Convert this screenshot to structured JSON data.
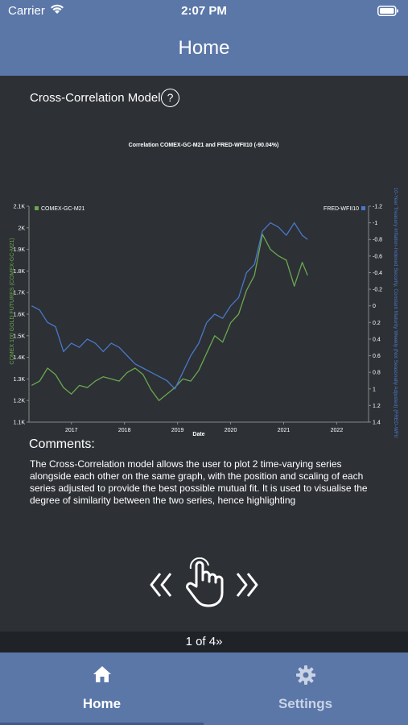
{
  "status_bar": {
    "carrier": "Carrier",
    "time": "2:07 PM"
  },
  "nav": {
    "title": "Home"
  },
  "model": {
    "title": "Cross-Correlation Model",
    "help_symbol": "?"
  },
  "chart_data": {
    "type": "line",
    "title": "Correlation COMEX-GC-M21 and FRED-WFII10 (-90.04%)",
    "xlabel": "Date",
    "x_ticks": [
      "2017",
      "2018",
      "2019",
      "2020",
      "2021",
      "2022"
    ],
    "y_left_label": "COMEX 100 GOLD FUTURES (COMEX-GC-M21)",
    "y_left_ticks": [
      "1.1K",
      "1.2K",
      "1.3K",
      "1.4K",
      "1.5K",
      "1.6K",
      "1.7K",
      "1.8K",
      "1.9K",
      "2K",
      "2.1K"
    ],
    "y_left_range": [
      1100,
      2100
    ],
    "y_right_label": "10-Year Treasury Inflation-Indexed Security, Constant Maturity Weekly (Not Seasonally Adjusted) (FRED-WFII",
    "y_right_ticks": [
      "-1.2",
      "-1",
      "-0.8",
      "-0.6",
      "-0.4",
      "-0.2",
      "0",
      "0.2",
      "0.4",
      "0.6",
      "0.8",
      "1",
      "1.2",
      "1.4"
    ],
    "y_right_range": [
      -1.2,
      1.4
    ],
    "y_right_inverted": true,
    "legend": "top",
    "series": [
      {
        "name": "COMEX-GC-M21",
        "color": "#6aa84f",
        "axis": "left",
        "x": [
          2016.25,
          2016.4,
          2016.55,
          2016.7,
          2016.85,
          2017.0,
          2017.15,
          2017.3,
          2017.45,
          2017.6,
          2017.75,
          2017.9,
          2018.05,
          2018.2,
          2018.35,
          2018.5,
          2018.65,
          2018.8,
          2018.95,
          2019.1,
          2019.25,
          2019.4,
          2019.55,
          2019.7,
          2019.85,
          2020.0,
          2020.15,
          2020.3,
          2020.45,
          2020.6,
          2020.75,
          2020.9,
          2021.05,
          2021.2,
          2021.35,
          2021.45
        ],
        "values": [
          1270,
          1290,
          1350,
          1320,
          1260,
          1230,
          1270,
          1260,
          1290,
          1310,
          1300,
          1290,
          1330,
          1350,
          1320,
          1250,
          1200,
          1230,
          1260,
          1300,
          1290,
          1340,
          1420,
          1500,
          1470,
          1560,
          1600,
          1710,
          1780,
          1970,
          1900,
          1870,
          1850,
          1730,
          1840,
          1780
        ]
      },
      {
        "name": "FRED-WFII10",
        "color": "#4a78c8",
        "axis": "right",
        "x": [
          2016.25,
          2016.4,
          2016.55,
          2016.7,
          2016.85,
          2017.0,
          2017.15,
          2017.3,
          2017.45,
          2017.6,
          2017.75,
          2017.9,
          2018.05,
          2018.2,
          2018.35,
          2018.5,
          2018.65,
          2018.8,
          2018.95,
          2019.1,
          2019.25,
          2019.4,
          2019.55,
          2019.7,
          2019.85,
          2020.0,
          2020.15,
          2020.3,
          2020.45,
          2020.6,
          2020.75,
          2020.9,
          2021.05,
          2021.2,
          2021.35,
          2021.45
        ],
        "values": [
          0.0,
          0.05,
          0.2,
          0.25,
          0.55,
          0.45,
          0.5,
          0.4,
          0.45,
          0.55,
          0.45,
          0.5,
          0.6,
          0.7,
          0.75,
          0.8,
          0.85,
          0.9,
          1.0,
          0.8,
          0.6,
          0.45,
          0.2,
          0.1,
          0.15,
          0.0,
          -0.1,
          -0.4,
          -0.5,
          -0.9,
          -1.0,
          -0.95,
          -0.85,
          -1.0,
          -0.85,
          -0.8
        ]
      }
    ]
  },
  "comments": {
    "title": "Comments:",
    "body": "The Cross-Correlation model allows the user to plot 2 time-varying series alongside each other on the same graph, with the position and scaling of each series adjusted to provide the best possible mutual fit. It is used to visualise the degree of similarity between the two series, hence highlighting"
  },
  "pager": {
    "text": "1 of 4"
  },
  "tabs": [
    {
      "label": "Home",
      "icon": "house-icon",
      "active": true
    },
    {
      "label": "Settings",
      "icon": "gear-icon",
      "active": false
    }
  ]
}
